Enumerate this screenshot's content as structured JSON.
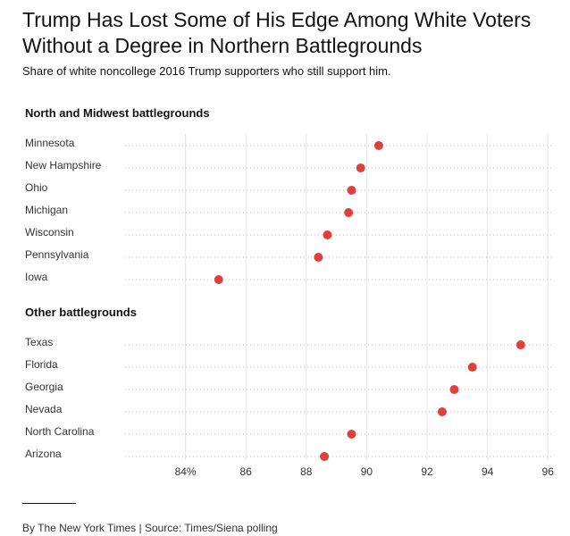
{
  "title": "Trump Has Lost Some of His Edge Among White Voters Without a Degree in Northern Battlegrounds",
  "subtitle": "Share of white noncollege 2016 Trump supporters who still support him.",
  "footer": "By The New York Times | Source: Times/Siena polling",
  "colors": {
    "dot": "#e0403a",
    "grid": "#e6e6e6",
    "dotted": "#bdbdbd"
  },
  "chart_data": {
    "type": "scatter",
    "orientation": "horizontal-dot",
    "xlim": [
      82,
      96.2
    ],
    "x_ticks": [
      84,
      86,
      88,
      90,
      92,
      94,
      96
    ],
    "x_tick_labels": [
      "84%",
      "86",
      "88",
      "90",
      "92",
      "94",
      "96"
    ],
    "grid": true,
    "groups": [
      {
        "name": "North and Midwest battlegrounds",
        "states": [
          {
            "name": "Minnesota",
            "value": 90.4
          },
          {
            "name": "New Hampshire",
            "value": 89.8
          },
          {
            "name": "Ohio",
            "value": 89.5
          },
          {
            "name": "Michigan",
            "value": 89.4
          },
          {
            "name": "Wisconsin",
            "value": 88.7
          },
          {
            "name": "Pennsylvania",
            "value": 88.4
          },
          {
            "name": "Iowa",
            "value": 85.1
          }
        ]
      },
      {
        "name": "Other battlegrounds",
        "states": [
          {
            "name": "Texas",
            "value": 95.1
          },
          {
            "name": "Florida",
            "value": 93.5
          },
          {
            "name": "Georgia",
            "value": 92.9
          },
          {
            "name": "Nevada",
            "value": 92.5
          },
          {
            "name": "North Carolina",
            "value": 89.5
          },
          {
            "name": "Arizona",
            "value": 88.6
          }
        ]
      }
    ]
  }
}
